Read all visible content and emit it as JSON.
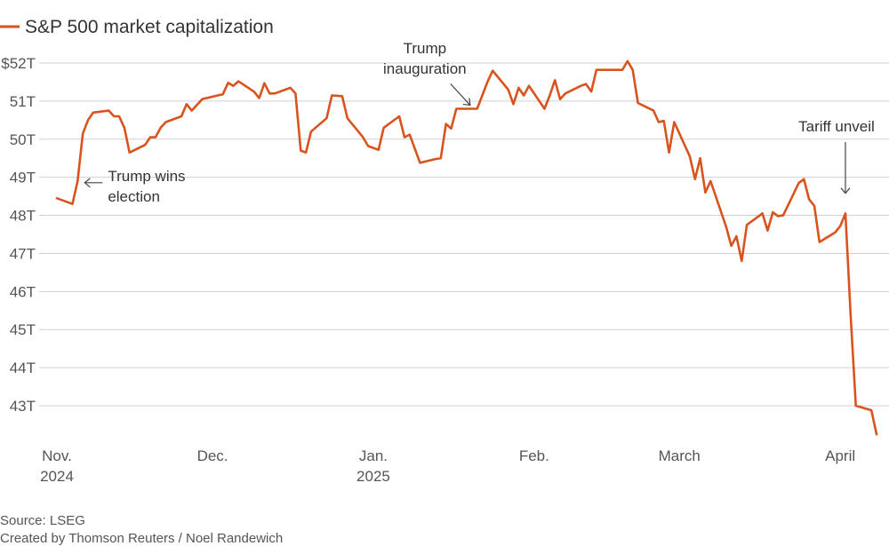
{
  "chart_data": {
    "type": "line",
    "title": "S&P 500 market capitalization",
    "series": [
      {
        "name": "S&P 500 market capitalization",
        "color": "#d9531e",
        "points": [
          [
            "2024-11-01",
            48.45
          ],
          [
            "2024-11-04",
            48.3
          ],
          [
            "2024-11-05",
            48.9
          ],
          [
            "2024-11-06",
            50.15
          ],
          [
            "2024-11-07",
            50.5
          ],
          [
            "2024-11-08",
            50.7
          ],
          [
            "2024-11-11",
            50.75
          ],
          [
            "2024-11-12",
            50.6
          ],
          [
            "2024-11-13",
            50.6
          ],
          [
            "2024-11-14",
            50.3
          ],
          [
            "2024-11-15",
            49.65
          ],
          [
            "2024-11-18",
            49.85
          ],
          [
            "2024-11-19",
            50.05
          ],
          [
            "2024-11-20",
            50.05
          ],
          [
            "2024-11-21",
            50.3
          ],
          [
            "2024-11-22",
            50.45
          ],
          [
            "2024-11-25",
            50.6
          ],
          [
            "2024-11-26",
            50.92
          ],
          [
            "2024-11-27",
            50.75
          ],
          [
            "2024-11-29",
            51.05
          ],
          [
            "2024-12-02",
            51.15
          ],
          [
            "2024-12-03",
            51.18
          ],
          [
            "2024-12-04",
            51.48
          ],
          [
            "2024-12-05",
            51.4
          ],
          [
            "2024-12-06",
            51.52
          ],
          [
            "2024-12-09",
            51.25
          ],
          [
            "2024-12-10",
            51.08
          ],
          [
            "2024-12-11",
            51.47
          ],
          [
            "2024-12-12",
            51.2
          ],
          [
            "2024-12-13",
            51.2
          ],
          [
            "2024-12-16",
            51.35
          ],
          [
            "2024-12-17",
            51.2
          ],
          [
            "2024-12-18",
            49.7
          ],
          [
            "2024-12-19",
            49.65
          ],
          [
            "2024-12-20",
            50.2
          ],
          [
            "2024-12-23",
            50.55
          ],
          [
            "2024-12-24",
            51.15
          ],
          [
            "2024-12-26",
            51.13
          ],
          [
            "2024-12-27",
            50.55
          ],
          [
            "2024-12-30",
            50.05
          ],
          [
            "2024-12-31",
            49.82
          ],
          [
            "2025-01-02",
            49.72
          ],
          [
            "2025-01-03",
            50.3
          ],
          [
            "2025-01-06",
            50.6
          ],
          [
            "2025-01-07",
            50.05
          ],
          [
            "2025-01-08",
            50.12
          ],
          [
            "2025-01-10",
            49.38
          ],
          [
            "2025-01-13",
            49.48
          ],
          [
            "2025-01-14",
            49.5
          ],
          [
            "2025-01-15",
            50.4
          ],
          [
            "2025-01-16",
            50.28
          ],
          [
            "2025-01-17",
            50.8
          ],
          [
            "2025-01-21",
            50.8
          ],
          [
            "2025-01-22",
            51.15
          ],
          [
            "2025-01-23",
            51.5
          ],
          [
            "2025-01-24",
            51.8
          ],
          [
            "2025-01-27",
            51.3
          ],
          [
            "2025-01-28",
            50.92
          ],
          [
            "2025-01-29",
            51.35
          ],
          [
            "2025-01-30",
            51.15
          ],
          [
            "2025-01-31",
            51.4
          ],
          [
            "2025-02-03",
            50.8
          ],
          [
            "2025-02-04",
            51.15
          ],
          [
            "2025-02-05",
            51.55
          ],
          [
            "2025-02-06",
            51.05
          ],
          [
            "2025-02-07",
            51.2
          ],
          [
            "2025-02-10",
            51.4
          ],
          [
            "2025-02-11",
            51.45
          ],
          [
            "2025-02-12",
            51.25
          ],
          [
            "2025-02-13",
            51.82
          ],
          [
            "2025-02-14",
            51.82
          ],
          [
            "2025-02-18",
            51.82
          ],
          [
            "2025-02-19",
            52.05
          ],
          [
            "2025-02-20",
            51.82
          ],
          [
            "2025-02-21",
            50.95
          ],
          [
            "2025-02-24",
            50.75
          ],
          [
            "2025-02-25",
            50.45
          ],
          [
            "2025-02-26",
            50.48
          ],
          [
            "2025-02-27",
            49.65
          ],
          [
            "2025-02-28",
            50.45
          ],
          [
            "2025-03-03",
            49.55
          ],
          [
            "2025-03-04",
            48.95
          ],
          [
            "2025-03-05",
            49.5
          ],
          [
            "2025-03-06",
            48.6
          ],
          [
            "2025-03-07",
            48.9
          ],
          [
            "2025-03-10",
            47.7
          ],
          [
            "2025-03-11",
            47.2
          ],
          [
            "2025-03-12",
            47.45
          ],
          [
            "2025-03-13",
            46.8
          ],
          [
            "2025-03-14",
            47.75
          ],
          [
            "2025-03-17",
            48.05
          ],
          [
            "2025-03-18",
            47.6
          ],
          [
            "2025-03-19",
            48.08
          ],
          [
            "2025-03-20",
            47.98
          ],
          [
            "2025-03-21",
            48.0
          ],
          [
            "2025-03-24",
            48.85
          ],
          [
            "2025-03-25",
            48.95
          ],
          [
            "2025-03-26",
            48.42
          ],
          [
            "2025-03-27",
            48.25
          ],
          [
            "2025-03-28",
            47.3
          ],
          [
            "2025-03-31",
            47.55
          ],
          [
            "2025-04-01",
            47.72
          ],
          [
            "2025-04-02",
            48.05
          ],
          [
            "2025-04-03",
            45.4
          ],
          [
            "2025-04-04",
            43.0
          ],
          [
            "2025-04-07",
            42.88
          ],
          [
            "2025-04-08",
            42.25
          ]
        ]
      }
    ],
    "yticks": [
      43,
      44,
      45,
      46,
      47,
      48,
      49,
      50,
      51,
      52
    ],
    "ytick_labels": [
      "43T",
      "44T",
      "45T",
      "46T",
      "47T",
      "48T",
      "49T",
      "50T",
      "51T",
      "$52T"
    ],
    "ylim": [
      42.0,
      52.3
    ],
    "xlim": [
      "2024-11-01",
      "2025-04-08"
    ],
    "xticks": [
      {
        "date": "2024-11-01",
        "label": "Nov.",
        "sublabel": "2024"
      },
      {
        "date": "2024-12-01",
        "label": "Dec.",
        "sublabel": ""
      },
      {
        "date": "2025-01-01",
        "label": "Jan.",
        "sublabel": "2025"
      },
      {
        "date": "2025-02-01",
        "label": "Feb.",
        "sublabel": ""
      },
      {
        "date": "2025-03-01",
        "label": "March",
        "sublabel": ""
      },
      {
        "date": "2025-04-01",
        "label": "April",
        "sublabel": ""
      }
    ],
    "grid": true,
    "legend_position": "top-left",
    "annotations": [
      {
        "lines": [
          "Trump wins",
          "election"
        ],
        "date": "2024-11-05",
        "value": 48.95
      },
      {
        "lines": [
          "Trump",
          "inauguration"
        ],
        "date": "2025-01-20",
        "value": 50.8
      },
      {
        "lines": [
          "Tariff unveil"
        ],
        "date": "2025-04-02",
        "value": 48.3
      }
    ]
  },
  "footer": {
    "source": "Source: LSEG",
    "credit": "Created by Thomson Reuters / Noel Randewich"
  }
}
